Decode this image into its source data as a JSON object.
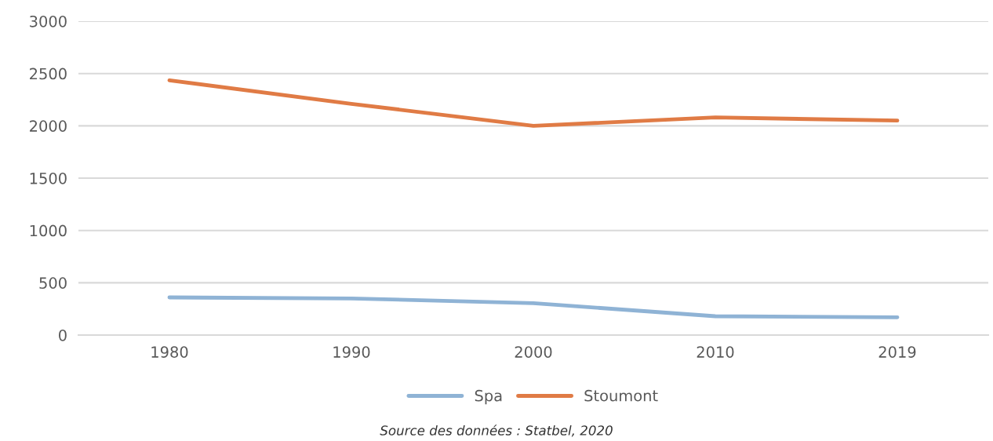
{
  "chart_data": {
    "type": "line",
    "categories": [
      "1980",
      "1990",
      "2000",
      "2010",
      "2019"
    ],
    "series": [
      {
        "name": "Spa",
        "color": "#8fb3d5",
        "values": [
          360,
          350,
          305,
          180,
          170
        ]
      },
      {
        "name": "Stoumont",
        "color": "#e07b45",
        "values": [
          2435,
          2210,
          2000,
          2080,
          2050
        ]
      }
    ],
    "ylim": [
      0,
      3000
    ],
    "yticks": [
      0,
      500,
      1000,
      1500,
      2000,
      2500,
      3000
    ],
    "grid": "y",
    "legend": "bottom",
    "marker": "none",
    "line_style": "solid",
    "annotations": [
      "Source des données : Statbel, 2020"
    ]
  }
}
